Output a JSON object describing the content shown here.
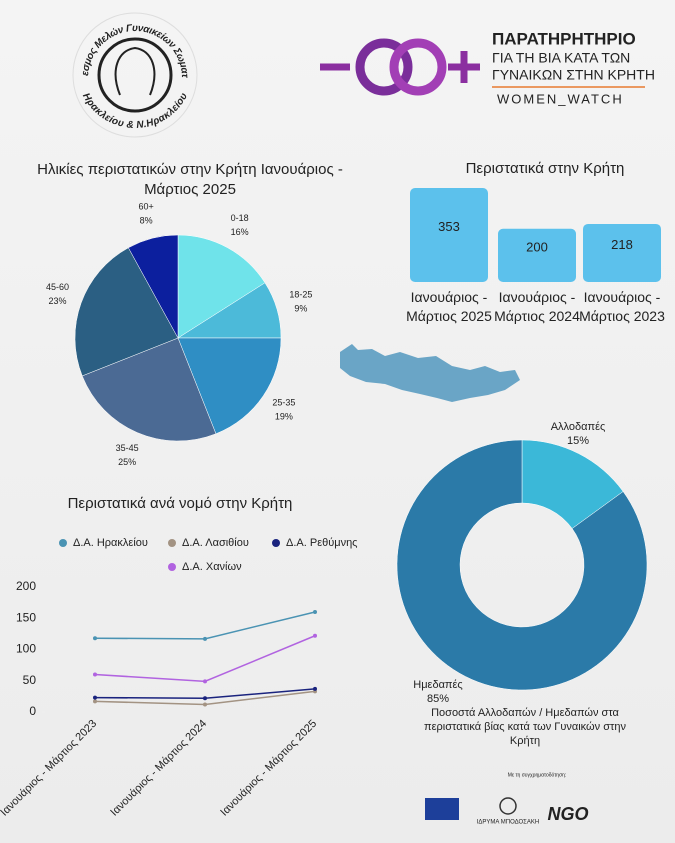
{
  "header": {
    "left_logo": [
      "Σύνδεσμος Μελών Γυναικείων Σωματείων",
      "Ηρακλείου & Ν.Ηρακλείου"
    ],
    "right_logo": {
      "title": "ΠΑΡΑΤΗΡΗΤΗΡΙΟ",
      "line1": "ΓΙΑ ΤΗ ΒΙΑ ΚΑΤΑ ΤΩΝ",
      "line2": "ΓΥΝΑΙΚΩΝ ΣΤΗΝ ΚΡΗΤΗ",
      "name": "WOMEN_WATCH"
    }
  },
  "chart_data": [
    {
      "type": "pie",
      "title": "Ηλικίες περιστατικών στην Κρήτη Ιανουάριος - Μάρτιος 2025",
      "categories": [
        "0-18",
        "18-25",
        "25-35",
        "35-45",
        "45-60",
        "60+"
      ],
      "values": [
        16,
        9,
        19,
        25,
        23,
        8
      ],
      "value_labels": [
        "16%",
        "9%",
        "19%",
        "25%",
        "23%",
        "8%"
      ],
      "colors": [
        "#6fe3ea",
        "#4cbad9",
        "#2f8ec4",
        "#4b6a94",
        "#2b5f83",
        "#0c1f9e"
      ]
    },
    {
      "type": "bar",
      "title": "Περιστατικά στην Κρήτη",
      "categories": [
        "Ιανουάριος - Μάρτιος 2025",
        "Ιανουάριος - Μάρτιος 2024",
        "Ιανουάριος - Μάρτιος 2023"
      ],
      "values": [
        353,
        200,
        218
      ],
      "color": "#5cc1ec"
    },
    {
      "type": "line",
      "title": "Περιστατικά ανά νομό στην Κρήτη",
      "categories": [
        "Ιανουάριος - Μάρτιος 2023",
        "Ιανουάριος - Μάρτιος 2024",
        "Ιανουάριος - Μάρτιος 2025"
      ],
      "series": [
        {
          "name": "Δ.Α. Ηρακλείου",
          "color": "#4a93b3",
          "values": [
            118,
            117,
            160
          ]
        },
        {
          "name": "Δ.Α. Λασιθίου",
          "color": "#a39383",
          "values": [
            17,
            12,
            33
          ]
        },
        {
          "name": "Δ.Α. Ρεθύμνης",
          "color": "#1a237e",
          "values": [
            23,
            22,
            37
          ]
        },
        {
          "name": "Δ.Α. Χανίων",
          "color": "#b163e0",
          "values": [
            60,
            49,
            122
          ]
        }
      ],
      "ylim": [
        0,
        200
      ],
      "yticks": [
        0,
        50,
        100,
        150,
        200
      ]
    },
    {
      "type": "donut",
      "title": "Ποσοστά Αλλοδαπών / Ημεδαπών στα περιστατικά βίας κατά των Γυναικών στην Κρήτη",
      "categories": [
        "Αλλοδαπές",
        "Ημεδαπές"
      ],
      "values": [
        15,
        85
      ],
      "value_labels": [
        "15%",
        "85%"
      ],
      "colors": [
        "#3bb8d8",
        "#2b7aa8"
      ]
    }
  ],
  "footer": {
    "caption": "Με τη συγχρηματοδότηση:",
    "logos": [
      "ΙΔΡΥΜΑ ΜΠΟΔΟΣΑΚΗ",
      "NGO"
    ]
  }
}
